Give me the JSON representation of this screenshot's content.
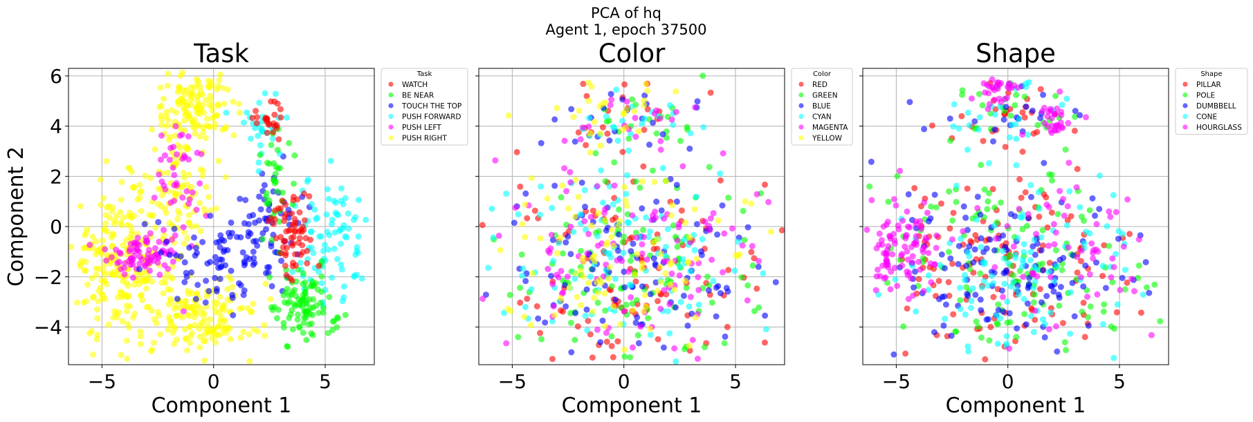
{
  "figure": {
    "suptitle_line1": "PCA of hq",
    "suptitle_line2": "Agent 1, epoch 37500"
  },
  "axes_common": {
    "xlabel": "Component 1",
    "ylabel": "Component 2",
    "xlim": [
      -6.5,
      7.2
    ],
    "ylim": [
      -5.5,
      6.3
    ],
    "xticks": [
      -5,
      0,
      5
    ],
    "xtick_labels": [
      "−5",
      "0",
      "5"
    ],
    "yticks": [
      -4,
      -2,
      0,
      2,
      4,
      6
    ],
    "ytick_labels": [
      "−4",
      "−2",
      "0",
      "2",
      "4",
      "6"
    ],
    "grid": true,
    "sharey": true,
    "marker_alpha": 0.6
  },
  "chart_data": [
    {
      "type": "scatter",
      "title": "Task",
      "legend_title": "Task",
      "legend_position": "outside upper right",
      "series": [
        {
          "name": "WATCH",
          "color": "#ff0000"
        },
        {
          "name": "BE NEAR",
          "color": "#00ff00"
        },
        {
          "name": "TOUCH THE TOP",
          "color": "#0000ff"
        },
        {
          "name": "PUSH FORWARD",
          "color": "#00ffff"
        },
        {
          "name": "PUSH LEFT",
          "color": "#ff00ff"
        },
        {
          "name": "PUSH RIGHT",
          "color": "#ffff00"
        }
      ],
      "clusters": [
        {
          "series": 5,
          "n": 240,
          "cx": -4.2,
          "cy": -1.5,
          "sx": 1.1,
          "sy": 1.5
        },
        {
          "series": 5,
          "n": 120,
          "cx": -0.8,
          "cy": 4.8,
          "sx": 0.9,
          "sy": 0.6
        },
        {
          "series": 5,
          "n": 110,
          "cx": -1.5,
          "cy": 1.5,
          "sx": 0.8,
          "sy": 1.6
        },
        {
          "series": 5,
          "n": 160,
          "cx": -0.5,
          "cy": -3.6,
          "sx": 1.3,
          "sy": 0.8
        },
        {
          "series": 4,
          "n": 75,
          "cx": -3.2,
          "cy": -1.1,
          "sx": 0.8,
          "sy": 0.4
        },
        {
          "series": 4,
          "n": 45,
          "cx": -1.5,
          "cy": 2.0,
          "sx": 0.6,
          "sy": 1.6
        },
        {
          "series": 2,
          "n": 90,
          "cx": 0.5,
          "cy": -1.3,
          "sx": 1.2,
          "sy": 0.9
        },
        {
          "series": 2,
          "n": 45,
          "cx": 2.8,
          "cy": 0.5,
          "sx": 0.6,
          "sy": 1.2
        },
        {
          "series": 3,
          "n": 85,
          "cx": 5.3,
          "cy": -0.6,
          "sx": 0.8,
          "sy": 1.3
        },
        {
          "series": 3,
          "n": 30,
          "cx": 2.2,
          "cy": 4.0,
          "sx": 0.6,
          "sy": 0.6
        },
        {
          "series": 1,
          "n": 100,
          "cx": 4.1,
          "cy": -3.2,
          "sx": 0.7,
          "sy": 0.7
        },
        {
          "series": 1,
          "n": 35,
          "cx": 2.8,
          "cy": 1.6,
          "sx": 0.5,
          "sy": 1.3
        },
        {
          "series": 0,
          "n": 65,
          "cx": 3.5,
          "cy": -0.2,
          "sx": 0.5,
          "sy": 0.9
        },
        {
          "series": 0,
          "n": 25,
          "cx": 2.5,
          "cy": 4.3,
          "sx": 0.4,
          "sy": 0.4
        }
      ]
    },
    {
      "type": "scatter",
      "title": "Color",
      "legend_title": "Color",
      "legend_position": "outside upper right",
      "series": [
        {
          "name": "RED",
          "color": "#ff0000"
        },
        {
          "name": "GREEN",
          "color": "#00ff00"
        },
        {
          "name": "BLUE",
          "color": "#0000ff"
        },
        {
          "name": "CYAN",
          "color": "#00ffff"
        },
        {
          "name": "MAGENTA",
          "color": "#ff00ff"
        },
        {
          "name": "YELLOW",
          "color": "#ffff00"
        }
      ],
      "clusters": [
        {
          "series": 0,
          "n": 110,
          "cx": 0.4,
          "cy": -1.6,
          "sx": 3.0,
          "sy": 2.0
        },
        {
          "series": 0,
          "n": 20,
          "cx": 0.2,
          "cy": 4.4,
          "sx": 1.5,
          "sy": 0.7
        },
        {
          "series": 1,
          "n": 110,
          "cx": 0.3,
          "cy": -1.6,
          "sx": 3.0,
          "sy": 2.0
        },
        {
          "series": 1,
          "n": 20,
          "cx": 0.5,
          "cy": 4.3,
          "sx": 1.5,
          "sy": 0.7
        },
        {
          "series": 2,
          "n": 110,
          "cx": 0.3,
          "cy": -1.5,
          "sx": 3.0,
          "sy": 2.0
        },
        {
          "series": 2,
          "n": 20,
          "cx": 0.0,
          "cy": 4.4,
          "sx": 1.5,
          "sy": 0.7
        },
        {
          "series": 3,
          "n": 110,
          "cx": 0.0,
          "cy": -1.3,
          "sx": 3.1,
          "sy": 2.0
        },
        {
          "series": 3,
          "n": 20,
          "cx": 0.6,
          "cy": 4.3,
          "sx": 1.5,
          "sy": 0.7
        },
        {
          "series": 4,
          "n": 110,
          "cx": 0.4,
          "cy": -1.5,
          "sx": 3.0,
          "sy": 2.0
        },
        {
          "series": 4,
          "n": 20,
          "cx": 0.8,
          "cy": 4.5,
          "sx": 1.5,
          "sy": 0.7
        },
        {
          "series": 5,
          "n": 110,
          "cx": -0.3,
          "cy": -1.4,
          "sx": 3.0,
          "sy": 2.0
        },
        {
          "series": 5,
          "n": 25,
          "cx": 0.0,
          "cy": 4.8,
          "sx": 1.5,
          "sy": 0.6
        }
      ]
    },
    {
      "type": "scatter",
      "title": "Shape",
      "legend_title": "Shape",
      "legend_position": "outside upper right",
      "series": [
        {
          "name": "PILLAR",
          "color": "#ff0000"
        },
        {
          "name": "POLE",
          "color": "#00ff00"
        },
        {
          "name": "DUMBBELL",
          "color": "#0000ff"
        },
        {
          "name": "CONE",
          "color": "#00ffff"
        },
        {
          "name": "HOURGLASS",
          "color": "#ff00ff"
        }
      ],
      "clusters": [
        {
          "series": 0,
          "n": 130,
          "cx": 0.0,
          "cy": -1.5,
          "sx": 3.0,
          "sy": 2.0
        },
        {
          "series": 0,
          "n": 25,
          "cx": -0.2,
          "cy": 4.5,
          "sx": 1.5,
          "sy": 0.7
        },
        {
          "series": 1,
          "n": 130,
          "cx": 0.5,
          "cy": -1.4,
          "sx": 3.0,
          "sy": 2.0
        },
        {
          "series": 1,
          "n": 25,
          "cx": 0.3,
          "cy": 4.5,
          "sx": 1.5,
          "sy": 0.7
        },
        {
          "series": 2,
          "n": 130,
          "cx": -0.2,
          "cy": -2.0,
          "sx": 3.0,
          "sy": 1.7
        },
        {
          "series": 2,
          "n": 20,
          "cx": 0.0,
          "cy": 4.4,
          "sx": 1.5,
          "sy": 0.7
        },
        {
          "series": 3,
          "n": 120,
          "cx": 0.3,
          "cy": -1.6,
          "sx": 3.0,
          "sy": 2.0
        },
        {
          "series": 3,
          "n": 25,
          "cx": 0.6,
          "cy": 4.4,
          "sx": 1.5,
          "sy": 0.7
        },
        {
          "series": 4,
          "n": 100,
          "cx": -4.6,
          "cy": -0.8,
          "sx": 0.9,
          "sy": 0.9
        },
        {
          "series": 4,
          "n": 60,
          "cx": 2.5,
          "cy": -1.3,
          "sx": 2.2,
          "sy": 1.8
        },
        {
          "series": 4,
          "n": 30,
          "cx": -0.5,
          "cy": 5.3,
          "sx": 0.5,
          "sy": 0.35
        },
        {
          "series": 4,
          "n": 30,
          "cx": 2.0,
          "cy": 4.2,
          "sx": 0.5,
          "sy": 0.35
        }
      ]
    }
  ]
}
